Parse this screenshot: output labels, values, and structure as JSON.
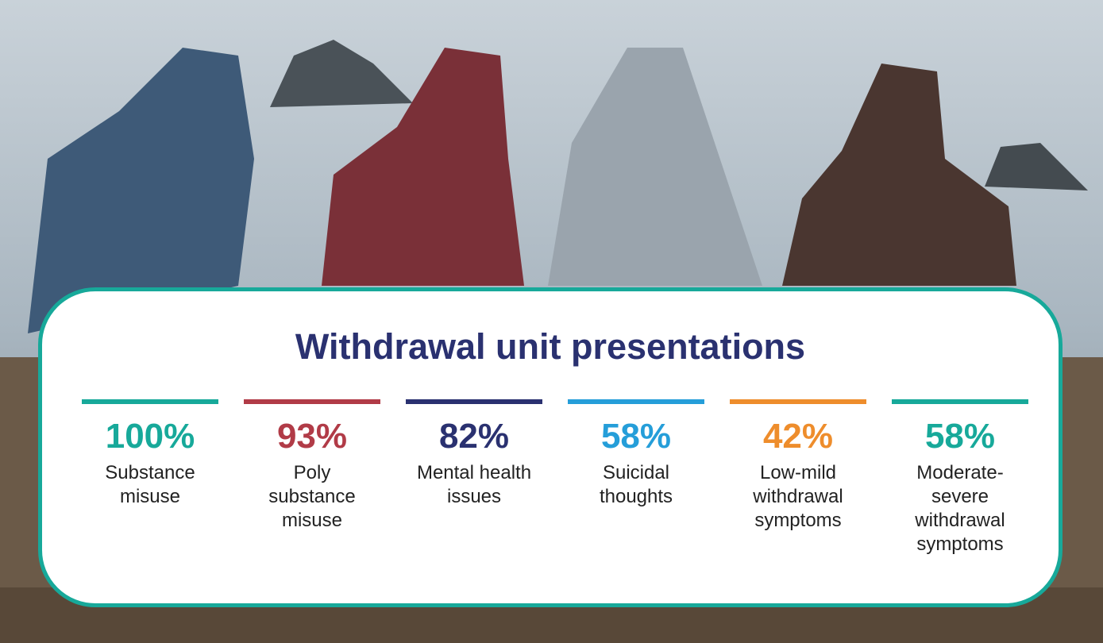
{
  "title": "Withdrawal unit presentations",
  "stats": [
    {
      "value": "100%",
      "label": "Substance misuse",
      "color": "#17a99a"
    },
    {
      "value": "93%",
      "label": "Poly substance misuse",
      "color": "#b13b47"
    },
    {
      "value": "82%",
      "label": "Mental health issues",
      "color": "#2a3170"
    },
    {
      "value": "58%",
      "label": "Suicidal thoughts",
      "color": "#259ed9"
    },
    {
      "value": "42%",
      "label": "Low-mild withdrawal symptoms",
      "color": "#ee8d2c"
    },
    {
      "value": "58%",
      "label": "Moderate-severe withdrawal symptoms",
      "color": "#17a99a"
    }
  ]
}
